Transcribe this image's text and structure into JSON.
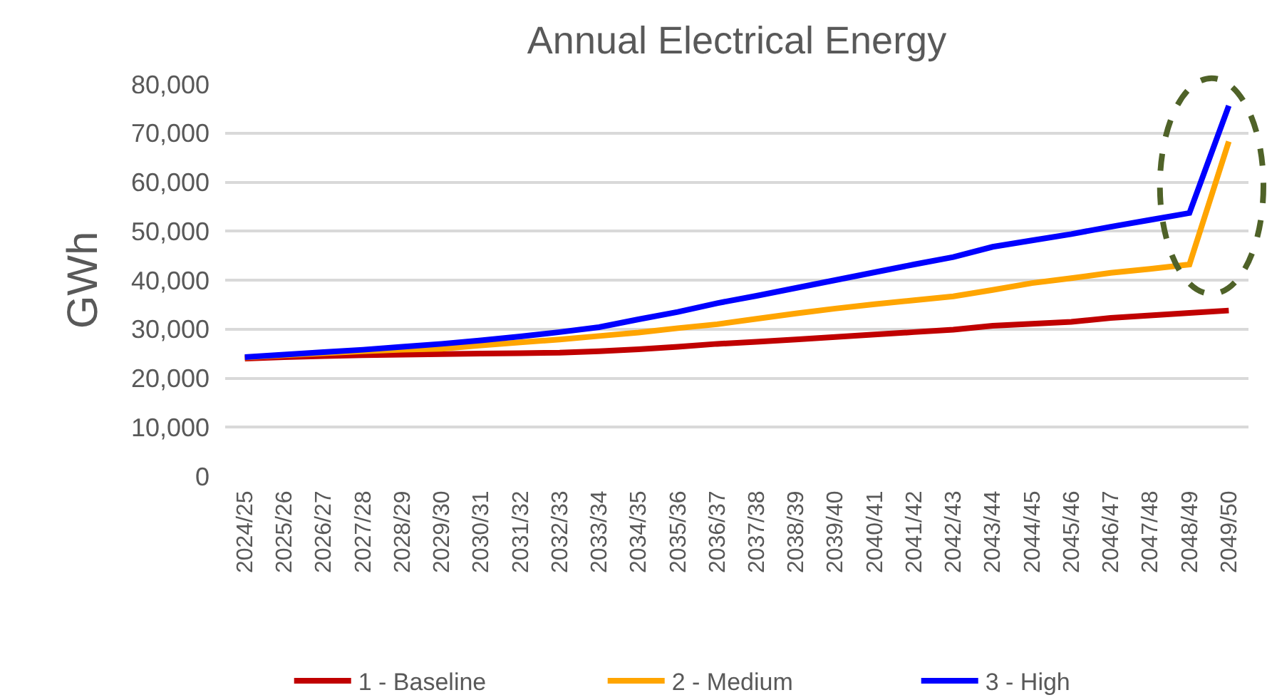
{
  "chart_data": {
    "type": "line",
    "title": "Annual Electrical Energy",
    "ylabel": "GWh",
    "categories": [
      "2024/25",
      "2025/26",
      "2026/27",
      "2027/28",
      "2028/29",
      "2029/30",
      "2030/31",
      "2031/32",
      "2032/33",
      "2033/34",
      "2034/35",
      "2035/36",
      "2036/37",
      "2037/38",
      "2038/39",
      "2039/40",
      "2040/41",
      "2041/42",
      "2042/43",
      "2043/44",
      "2044/45",
      "2045/46",
      "2046/47",
      "2047/48",
      "2048/49",
      "2049/50"
    ],
    "series": [
      {
        "name": "1 - Baseline",
        "color": "#c00000",
        "values": [
          24000,
          24300,
          24500,
          24700,
          24800,
          24900,
          25000,
          25100,
          25200,
          25500,
          25900,
          26400,
          27000,
          27400,
          27900,
          28400,
          28900,
          29400,
          29900,
          30700,
          31100,
          31500,
          32300,
          32800,
          33300,
          33800
        ]
      },
      {
        "name": "2 - Medium",
        "color": "#ffa500",
        "values": [
          24200,
          24700,
          25100,
          25500,
          25800,
          26000,
          26700,
          27300,
          27900,
          28600,
          29300,
          30200,
          31000,
          32100,
          33200,
          34200,
          35100,
          35900,
          36700,
          38000,
          39400,
          40400,
          41500,
          42300,
          43200,
          68300
        ]
      },
      {
        "name": "3 - High",
        "color": "#0000ff",
        "values": [
          24300,
          24800,
          25300,
          25800,
          26400,
          27000,
          27700,
          28500,
          29400,
          30400,
          32000,
          33500,
          35300,
          36800,
          38400,
          40000,
          41600,
          43200,
          44700,
          46800,
          48100,
          49400,
          50900,
          52300,
          53700,
          75600
        ]
      }
    ],
    "ylim": [
      0,
      80000
    ],
    "yticks": [
      0,
      {
        "value": 10000,
        "label": "10,000"
      },
      {
        "value": 20000,
        "label": "20,000"
      },
      {
        "value": 30000,
        "label": "30,000"
      },
      {
        "value": 40000,
        "label": "40,000"
      },
      {
        "value": 50000,
        "label": "50,000"
      },
      {
        "value": 60000,
        "label": "60,000"
      },
      {
        "value": 70000,
        "label": "70,000"
      },
      {
        "value": 80000,
        "label": "80,000"
      }
    ],
    "grid": "y",
    "legend": "bottom",
    "marker": "none",
    "line_style": "solid"
  }
}
